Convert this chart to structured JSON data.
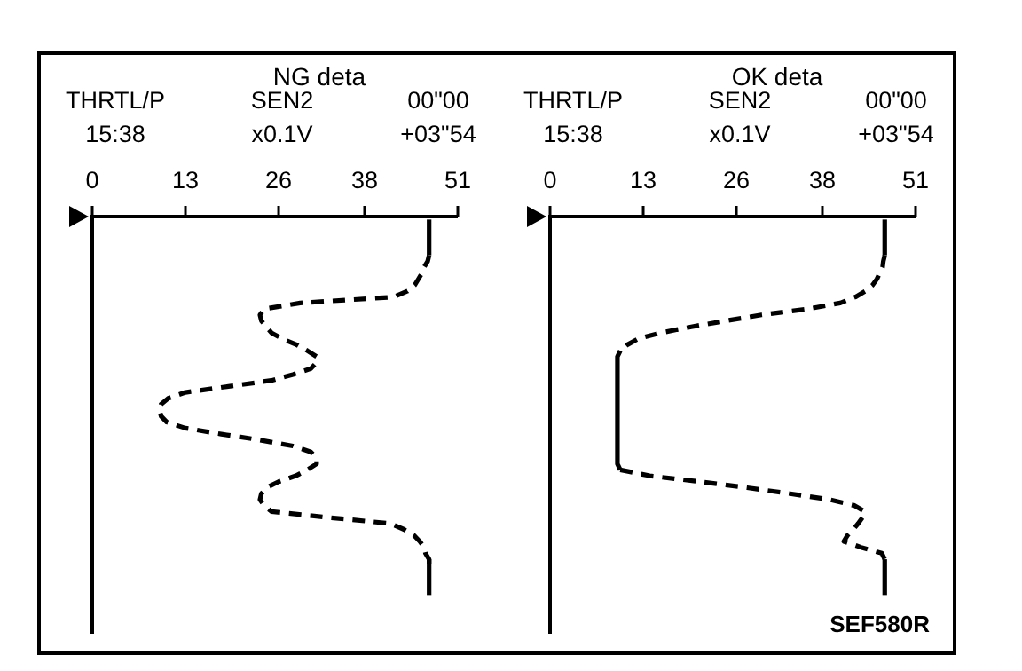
{
  "chart_data": [
    {
      "type": "line",
      "orientation": "horizontal",
      "title": "NG deta",
      "annotations": [
        "THRTL/P",
        "15:38",
        "SEN2",
        "x0.1V",
        "00\"00",
        "+03\"54"
      ],
      "xlim": [
        0,
        51
      ],
      "xticks": [
        0,
        13,
        26,
        38,
        51
      ],
      "categories": [
        null,
        null,
        null,
        null,
        null,
        null,
        null,
        null,
        null,
        null,
        null,
        null,
        null,
        null,
        null,
        null,
        null,
        null,
        null,
        null,
        null,
        null,
        null,
        null,
        null,
        null,
        null,
        null,
        null,
        null,
        null,
        null,
        null,
        null,
        null,
        null,
        null,
        null,
        null,
        null,
        null,
        null,
        null,
        null,
        null,
        null,
        null,
        null,
        null,
        null,
        null,
        null,
        null,
        null,
        null,
        null,
        null,
        null,
        null,
        null,
        null,
        null,
        null,
        null,
        null,
        null,
        null,
        null,
        null,
        null
      ],
      "series": [
        {
          "color": "#000000",
          "line_style": "solid",
          "values": [
            47,
            47,
            47,
            47,
            47,
            47,
            47,
            null,
            null,
            null,
            null,
            null,
            null,
            null,
            null,
            null,
            null,
            null,
            null,
            null,
            null,
            null,
            null,
            null,
            null,
            null,
            null,
            null,
            null,
            null,
            null,
            null,
            null,
            null,
            null,
            null,
            null,
            null,
            null,
            null,
            null,
            null,
            null,
            null,
            null,
            null,
            null,
            null,
            null,
            null,
            null,
            null,
            null,
            null,
            null,
            null,
            null,
            null,
            null,
            null,
            null,
            null,
            null,
            null,
            null,
            null,
            null,
            null,
            null,
            null
          ]
        },
        {
          "color": "#000000",
          "line_style": "dashed",
          "values": [
            null,
            null,
            null,
            null,
            null,
            null,
            47,
            46.8,
            46.3,
            46,
            45.5,
            45,
            44,
            42,
            29,
            24,
            23.4,
            23.6,
            24.3,
            25,
            26.5,
            28.5,
            30,
            31.3,
            31.3,
            30.5,
            28,
            25,
            19,
            13,
            10.6,
            9.6,
            9.4,
            9.6,
            10.4,
            13,
            18,
            23.4,
            28,
            30.5,
            31.3,
            31.3,
            30,
            28.4,
            26,
            24.3,
            23.6,
            23.4,
            24,
            25,
            33,
            41.6,
            43.5,
            44.9,
            45.7,
            46.3,
            46.5,
            47,
            47,
            null,
            null,
            null,
            null,
            null,
            null,
            null,
            null,
            null,
            null,
            null
          ]
        },
        {
          "color": "#000000",
          "line_style": "solid",
          "values": [
            null,
            null,
            null,
            null,
            null,
            null,
            null,
            null,
            null,
            null,
            null,
            null,
            null,
            null,
            null,
            null,
            null,
            null,
            null,
            null,
            null,
            null,
            null,
            null,
            null,
            null,
            null,
            null,
            null,
            null,
            null,
            null,
            null,
            null,
            null,
            null,
            null,
            null,
            null,
            null,
            null,
            null,
            null,
            null,
            null,
            null,
            null,
            null,
            null,
            null,
            null,
            null,
            null,
            null,
            null,
            null,
            null,
            47,
            47,
            47,
            47,
            47,
            47,
            47,
            null,
            null,
            null,
            null,
            null,
            null
          ]
        }
      ]
    },
    {
      "type": "line",
      "orientation": "horizontal",
      "title": "OK deta",
      "annotations": [
        "THRTL/P",
        "15:38",
        "SEN2",
        "x0.1V",
        "00\"00",
        "+03\"54",
        "SEF580R"
      ],
      "xlim": [
        0,
        51
      ],
      "xticks": [
        0,
        13,
        26,
        38,
        51
      ],
      "categories": [
        null,
        null,
        null,
        null,
        null,
        null,
        null,
        null,
        null,
        null,
        null,
        null,
        null,
        null,
        null,
        null,
        null,
        null,
        null,
        null,
        null,
        null,
        null,
        null,
        null,
        null,
        null,
        null,
        null,
        null,
        null,
        null,
        null,
        null,
        null,
        null,
        null,
        null,
        null,
        null,
        null,
        null,
        null,
        null,
        null,
        null,
        null,
        null,
        null,
        null,
        null,
        null,
        null,
        null,
        null,
        null,
        null,
        null,
        null,
        null,
        null,
        null,
        null,
        null,
        null,
        null,
        null,
        null,
        null,
        null
      ],
      "series": [
        {
          "color": "#000000",
          "line_style": "solid",
          "values": [
            46.7,
            46.7,
            46.7,
            46.7,
            46.7,
            46.7,
            46.7,
            null,
            null,
            null,
            null,
            null,
            null,
            null,
            null,
            null,
            null,
            null,
            null,
            null,
            null,
            null,
            null,
            null,
            null,
            null,
            null,
            null,
            null,
            null,
            null,
            null,
            null,
            null,
            null,
            null,
            null,
            null,
            null,
            null,
            null,
            null,
            null,
            null,
            null,
            null,
            null,
            null,
            null,
            null,
            null,
            null,
            null,
            null,
            null,
            null,
            null,
            null,
            null,
            null,
            null,
            null,
            null,
            null,
            null,
            null,
            null,
            null,
            null,
            null
          ]
        },
        {
          "color": "#000000",
          "line_style": "dashed",
          "values": [
            null,
            null,
            null,
            null,
            null,
            null,
            46.7,
            46.5,
            46.4,
            46,
            45.6,
            45,
            44,
            42.6,
            40.5,
            36,
            29.5,
            24.5,
            19.7,
            15.5,
            12.3,
            10.8,
            9.8,
            null,
            null,
            null,
            null,
            null,
            null,
            null,
            null,
            null,
            null,
            null,
            null,
            null,
            null,
            null,
            null,
            null,
            null,
            null,
            null,
            null,
            null,
            null,
            null,
            null,
            null,
            null,
            null,
            null,
            null,
            null,
            null,
            null,
            null,
            null,
            null,
            null,
            null,
            null,
            null,
            null,
            null,
            null,
            null,
            null,
            null,
            null
          ]
        },
        {
          "color": "#000000",
          "line_style": "solid",
          "values": [
            null,
            null,
            null,
            null,
            null,
            null,
            null,
            null,
            null,
            null,
            null,
            null,
            null,
            null,
            null,
            null,
            null,
            null,
            null,
            null,
            null,
            null,
            9.8,
            9.4,
            9.4,
            9.4,
            9.4,
            9.4,
            9.4,
            9.4,
            9.4,
            9.4,
            9.4,
            9.4,
            9.4,
            9.4,
            9.4,
            9.4,
            9.4,
            9.4,
            9.4,
            9.4,
            9.8,
            null,
            null,
            null,
            null,
            null,
            null,
            null,
            null,
            null,
            null,
            null,
            null,
            null,
            null,
            null,
            null,
            null,
            null,
            null,
            null,
            null,
            null,
            null,
            null,
            null,
            null,
            null
          ]
        },
        {
          "color": "#000000",
          "line_style": "dashed",
          "values": [
            null,
            null,
            null,
            null,
            null,
            null,
            null,
            null,
            null,
            null,
            null,
            null,
            null,
            null,
            null,
            null,
            null,
            null,
            null,
            null,
            null,
            null,
            null,
            null,
            null,
            null,
            null,
            null,
            null,
            null,
            null,
            null,
            null,
            null,
            null,
            null,
            null,
            null,
            null,
            null,
            null,
            null,
            9.8,
            13.9,
            21,
            27.5,
            33.5,
            39,
            42.5,
            43.9,
            43.6,
            43,
            42.3,
            41.5,
            41,
            43.4,
            46.3,
            46.7,
            null,
            null,
            null,
            null,
            null,
            null,
            null,
            null,
            null,
            null,
            null,
            null
          ]
        },
        {
          "color": "#000000",
          "line_style": "solid",
          "values": [
            null,
            null,
            null,
            null,
            null,
            null,
            null,
            null,
            null,
            null,
            null,
            null,
            null,
            null,
            null,
            null,
            null,
            null,
            null,
            null,
            null,
            null,
            null,
            null,
            null,
            null,
            null,
            null,
            null,
            null,
            null,
            null,
            null,
            null,
            null,
            null,
            null,
            null,
            null,
            null,
            null,
            null,
            null,
            null,
            null,
            null,
            null,
            null,
            null,
            null,
            null,
            null,
            null,
            null,
            null,
            null,
            null,
            46.7,
            46.7,
            46.7,
            46.7,
            46.7,
            46.7,
            46.7,
            null,
            null,
            null,
            null,
            null,
            null
          ]
        }
      ]
    }
  ]
}
